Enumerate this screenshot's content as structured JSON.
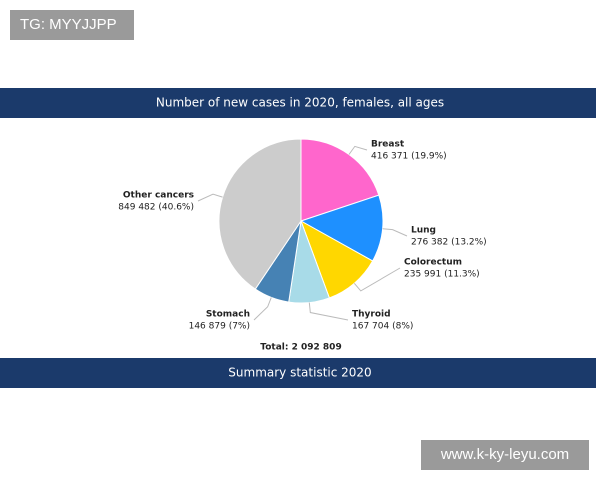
{
  "watermark_top": "TG: MYYJJPP",
  "watermark_bottom": "www.k-ky-leyu.com",
  "chart_data": {
    "type": "pie",
    "title": "Number of new cases in 2020, females, all ages",
    "categories": [
      "Breast",
      "Lung",
      "Colorectum",
      "Thyroid",
      "Stomach",
      "Other cancers"
    ],
    "values": [
      416371,
      276382,
      235991,
      167704,
      146879,
      849482
    ],
    "value_labels": [
      "416 371 (19.9%)",
      "276 382 (13.2%)",
      "235 991 (11.3%)",
      "167 704 (8%)",
      "146 879 (7%)",
      "849 482 (40.6%)"
    ],
    "colors": [
      "#ff66cc",
      "#1e90ff",
      "#ffd700",
      "#a8dbe8",
      "#4682b4",
      "#cccccc"
    ],
    "total": "Total: 2 092 809",
    "footer": "Summary statistic 2020"
  }
}
